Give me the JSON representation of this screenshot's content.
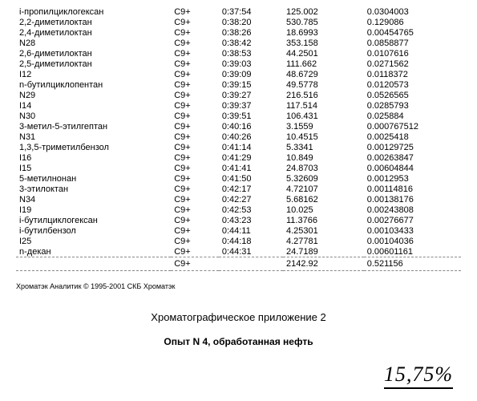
{
  "table": {
    "rows": [
      {
        "name": "i-пропилциклогексан",
        "cat": "C9+",
        "time": "0:37:54",
        "v1": "125.002",
        "v2": "0.0304003"
      },
      {
        "name": "2,2-диметилоктан",
        "cat": "C9+",
        "time": "0:38:20",
        "v1": "530.785",
        "v2": "0.129086"
      },
      {
        "name": "2,4-диметилоктан",
        "cat": "C9+",
        "time": "0:38:26",
        "v1": "18.6993",
        "v2": "0.00454765"
      },
      {
        "name": "N28",
        "cat": "C9+",
        "time": "0:38:42",
        "v1": "353.158",
        "v2": "0.0858877"
      },
      {
        "name": "2,6-диметилоктан",
        "cat": "C9+",
        "time": "0:38:53",
        "v1": "44.2501",
        "v2": "0.0107616"
      },
      {
        "name": "2,5-диметилоктан",
        "cat": "C9+",
        "time": "0:39:03",
        "v1": "111.662",
        "v2": "0.0271562"
      },
      {
        "name": "I12",
        "cat": "C9+",
        "time": "0:39:09",
        "v1": "48.6729",
        "v2": "0.0118372"
      },
      {
        "name": "n-бутилциклопентан",
        "cat": "C9+",
        "time": "0:39:15",
        "v1": "49.5778",
        "v2": "0.0120573"
      },
      {
        "name": "N29",
        "cat": "C9+",
        "time": "0:39:27",
        "v1": "216.516",
        "v2": "0.0526565"
      },
      {
        "name": "I14",
        "cat": "C9+",
        "time": "0:39:37",
        "v1": "117.514",
        "v2": "0.0285793"
      },
      {
        "name": "N30",
        "cat": "C9+",
        "time": "0:39:51",
        "v1": "106.431",
        "v2": "0.025884"
      },
      {
        "name": "3-метил-5-этилгептан",
        "cat": "C9+",
        "time": "0:40:16",
        "v1": "3.1559",
        "v2": "0.000767512"
      },
      {
        "name": "N31",
        "cat": "C9+",
        "time": "0:40:26",
        "v1": "10.4515",
        "v2": "0.0025418"
      },
      {
        "name": "1,3,5-триметилбензол",
        "cat": "C9+",
        "time": "0:41:14",
        "v1": "5.3341",
        "v2": "0.00129725"
      },
      {
        "name": "I16",
        "cat": "C9+",
        "time": "0:41:29",
        "v1": "10.849",
        "v2": "0.00263847"
      },
      {
        "name": "I15",
        "cat": "C9+",
        "time": "0:41:41",
        "v1": "24.8703",
        "v2": "0.00604844"
      },
      {
        "name": "5-метилнонан",
        "cat": "C9+",
        "time": "0:41:50",
        "v1": "5.32609",
        "v2": "0.0012953"
      },
      {
        "name": "3-этилоктан",
        "cat": "C9+",
        "time": "0:42:17",
        "v1": "4.72107",
        "v2": "0.00114816"
      },
      {
        "name": "N34",
        "cat": "C9+",
        "time": "0:42:27",
        "v1": "5.68162",
        "v2": "0.00138176"
      },
      {
        "name": "I19",
        "cat": "C9+",
        "time": "0:42:53",
        "v1": "10.025",
        "v2": "0.00243808"
      },
      {
        "name": "i-бутилциклогексан",
        "cat": "C9+",
        "time": "0:43:23",
        "v1": "11.3766",
        "v2": "0.00276677"
      },
      {
        "name": "i-бутилбензол",
        "cat": "C9+",
        "time": "0:44:11",
        "v1": "4.25301",
        "v2": "0.00103433"
      },
      {
        "name": "I25",
        "cat": "C9+",
        "time": "0:44:18",
        "v1": "4.27781",
        "v2": "0.00104036"
      },
      {
        "name": "n-декан",
        "cat": "C9+",
        "time": "0:44:31",
        "v1": "24.7189",
        "v2": "0.00601161"
      }
    ],
    "total": {
      "name": "",
      "cat": "C9+",
      "time": "",
      "v1": "2142.92",
      "v2": "0.521156"
    }
  },
  "copyright": "Хроматэк Аналитик   © 1995-2001 СКБ Хроматэк",
  "appTitle": "Хроматографическое приложение 2",
  "expTitle": "Опыт N 4, обработанная нефть",
  "handwritten": "15,75%"
}
